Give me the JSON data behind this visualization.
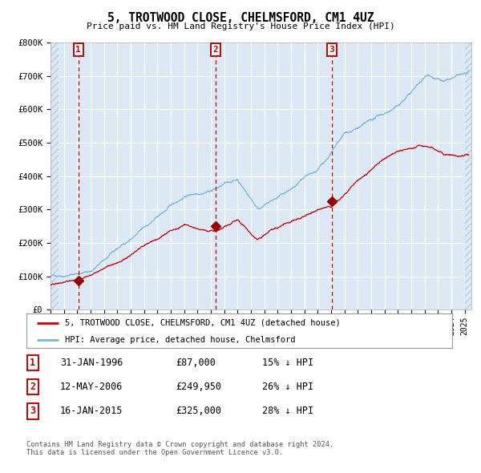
{
  "title": "5, TROTWOOD CLOSE, CHELMSFORD, CM1 4UZ",
  "subtitle": "Price paid vs. HM Land Registry's House Price Index (HPI)",
  "bg_color": "#dce9f5",
  "hatch_color": "#b8cfe0",
  "grid_color": "#ffffff",
  "red_line_color": "#cc0000",
  "blue_line_color": "#7ab4d8",
  "sale_marker_color": "#990000",
  "sale_dashed_color": "#cc0000",
  "ylim": [
    0,
    800000
  ],
  "yticks": [
    0,
    100000,
    200000,
    300000,
    400000,
    500000,
    600000,
    700000,
    800000
  ],
  "ytick_labels": [
    "£0",
    "£100K",
    "£200K",
    "£300K",
    "£400K",
    "£500K",
    "£600K",
    "£700K",
    "£800K"
  ],
  "sales": [
    {
      "label": "1",
      "date_dec": 1996.08,
      "price": 87000
    },
    {
      "label": "2",
      "date_dec": 2006.36,
      "price": 249950
    },
    {
      "label": "3",
      "date_dec": 2015.05,
      "price": 325000
    }
  ],
  "legend_entries": [
    "5, TROTWOOD CLOSE, CHELMSFORD, CM1 4UZ (detached house)",
    "HPI: Average price, detached house, Chelmsford"
  ],
  "table_rows": [
    {
      "num": "1",
      "date": "31-JAN-1996",
      "price": "£87,000",
      "hpi": "15% ↓ HPI"
    },
    {
      "num": "2",
      "date": "12-MAY-2006",
      "price": "£249,950",
      "hpi": "26% ↓ HPI"
    },
    {
      "num": "3",
      "date": "16-JAN-2015",
      "price": "£325,000",
      "hpi": "28% ↓ HPI"
    }
  ],
  "footer": "Contains HM Land Registry data © Crown copyright and database right 2024.\nThis data is licensed under the Open Government Licence v3.0."
}
